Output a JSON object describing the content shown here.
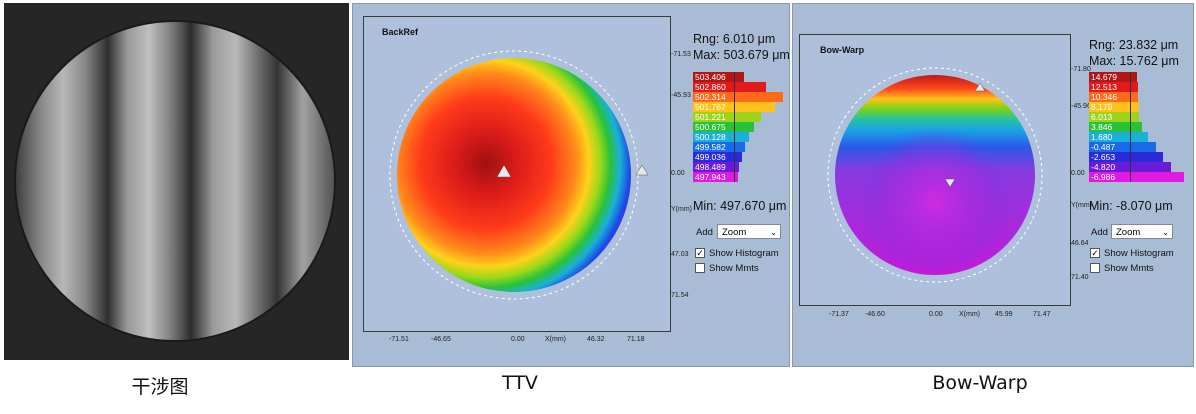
{
  "captions": {
    "interference": "干涉图",
    "ttv": "TTV",
    "bow_warp": "Bow-Warp"
  },
  "ttv": {
    "title": "BackRef",
    "rng": "Rng: 6.010 μm",
    "max": "Max: 503.679 μm",
    "min": "Min: 497.670 μm",
    "y_ticks": [
      "-71.53",
      "-45.93",
      "0.00",
      "Y(mm)",
      "47.03",
      "71.54"
    ],
    "x_ticks": [
      "-71.51",
      "-46.65",
      "0.00",
      "X(mm)",
      "46.32",
      "71.18"
    ],
    "histogram": [
      {
        "label": "503.406",
        "color": "#b01818",
        "value": 0.18
      },
      {
        "label": "502.860",
        "color": "#e01b1b",
        "value": 0.62
      },
      {
        "label": "502.314",
        "color": "#ff6a1a",
        "value": 0.95
      },
      {
        "label": "501.767",
        "color": "#ffc21a",
        "value": 0.8
      },
      {
        "label": "501.221",
        "color": "#9fd21b",
        "value": 0.52
      },
      {
        "label": "500.675",
        "color": "#28c23a",
        "value": 0.38
      },
      {
        "label": "500.128",
        "color": "#1ab0d8",
        "value": 0.28
      },
      {
        "label": "499.582",
        "color": "#1a6ae8",
        "value": 0.2
      },
      {
        "label": "499.036",
        "color": "#2a2ad8",
        "value": 0.13
      },
      {
        "label": "498.489",
        "color": "#6a1ad8",
        "value": 0.08
      },
      {
        "label": "497.943",
        "color": "#e01ae0",
        "value": 0.05
      }
    ],
    "add_label": "Add",
    "zoom_value": "Zoom",
    "show_histogram": "Show Histogram",
    "show_mmts": "Show Mmts",
    "show_histogram_checked": true,
    "show_mmts_checked": false
  },
  "bow_warp": {
    "title": "Bow-Warp",
    "rng": "Rng: 23.832 μm",
    "max": "Max: 15.762 μm",
    "min": "Min: -8.070 μm",
    "y_ticks": [
      "-71.80",
      "-45.96",
      "0.00",
      "Y(mm)",
      "46.64",
      "71.40"
    ],
    "x_ticks": [
      "-71.37",
      "-46.60",
      "0.00",
      "X(mm)",
      "45.99",
      "71.47"
    ],
    "histogram": [
      {
        "label": "14.679",
        "color": "#b01818",
        "value": 0.1
      },
      {
        "label": "12.513",
        "color": "#e01b1b",
        "value": 0.12
      },
      {
        "label": "10.346",
        "color": "#ff6a1a",
        "value": 0.12
      },
      {
        "label": "8.179",
        "color": "#ffc21a",
        "value": 0.14
      },
      {
        "label": "6.013",
        "color": "#9fd21b",
        "value": 0.14
      },
      {
        "label": "3.846",
        "color": "#28c23a",
        "value": 0.2
      },
      {
        "label": "1.680",
        "color": "#1ab0d8",
        "value": 0.3
      },
      {
        "label": "-0.487",
        "color": "#1a6ae8",
        "value": 0.45
      },
      {
        "label": "-2.653",
        "color": "#2a2ad8",
        "value": 0.58
      },
      {
        "label": "-4.820",
        "color": "#6a1ad8",
        "value": 0.72
      },
      {
        "label": "-6.986",
        "color": "#e01ae0",
        "value": 0.95
      }
    ],
    "add_label": "Add",
    "zoom_value": "Zoom",
    "show_histogram": "Show Histogram",
    "show_mmts": "Show Mmts",
    "show_histogram_checked": true,
    "show_mmts_checked": false
  }
}
